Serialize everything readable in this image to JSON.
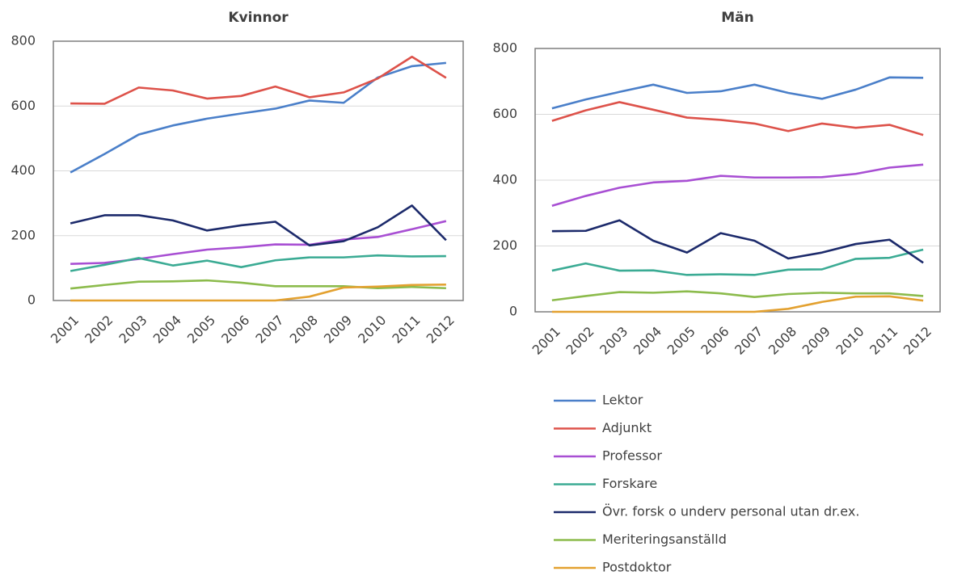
{
  "chart_data": [
    {
      "type": "line",
      "title": "Kvinnor",
      "categories": [
        "2001",
        "2002",
        "2003",
        "2004",
        "2005",
        "2006",
        "2007",
        "2008",
        "2009",
        "2010",
        "2011",
        "2012"
      ],
      "ylim": [
        0,
        800
      ],
      "yticks": [
        0,
        200,
        400,
        600,
        800
      ],
      "grid": true,
      "series": [
        {
          "color": "#4a7fc9",
          "values": [
            395,
            452,
            512,
            540,
            561,
            577,
            592,
            617,
            610,
            688,
            723,
            733
          ]
        },
        {
          "color": "#dd524a",
          "values": [
            608,
            607,
            657,
            648,
            623,
            631,
            660,
            627,
            642,
            685,
            752,
            687
          ]
        },
        {
          "color": "#a84fd3",
          "values": [
            113,
            116,
            128,
            143,
            157,
            164,
            173,
            172,
            188,
            196,
            220,
            245
          ]
        },
        {
          "color": "#3bab94",
          "values": [
            91,
            110,
            131,
            108,
            123,
            103,
            124,
            133,
            133,
            139,
            136,
            137
          ]
        },
        {
          "color": "#1c2a6b",
          "values": [
            238,
            263,
            263,
            247,
            216,
            232,
            243,
            170,
            183,
            226,
            293,
            186
          ]
        },
        {
          "color": "#8cbb4c",
          "values": [
            37,
            48,
            58,
            59,
            62,
            55,
            44,
            44,
            44,
            38,
            42,
            38
          ]
        },
        {
          "color": "#e3a130",
          "values": [
            0,
            0,
            0,
            0,
            0,
            0,
            0,
            12,
            40,
            43,
            48,
            49
          ]
        }
      ]
    },
    {
      "type": "line",
      "title": "Män",
      "categories": [
        "2001",
        "2002",
        "2003",
        "2004",
        "2005",
        "2006",
        "2007",
        "2008",
        "2009",
        "2010",
        "2011",
        "2012"
      ],
      "ylim": [
        0,
        800
      ],
      "yticks": [
        0,
        200,
        400,
        600,
        800
      ],
      "grid": true,
      "series": [
        {
          "name": "Lektor",
          "color": "#4a7fc9",
          "values": [
            618,
            645,
            668,
            690,
            665,
            670,
            690,
            665,
            647,
            675,
            712,
            711
          ]
        },
        {
          "name": "Adjunkt",
          "color": "#dd524a",
          "values": [
            580,
            612,
            637,
            614,
            590,
            583,
            572,
            549,
            572,
            559,
            568,
            537
          ]
        },
        {
          "name": "Professor",
          "color": "#a84fd3",
          "values": [
            322,
            352,
            377,
            393,
            398,
            413,
            408,
            408,
            409,
            419,
            438,
            447
          ]
        },
        {
          "name": "Forskare",
          "color": "#3bab94",
          "values": [
            125,
            147,
            125,
            126,
            112,
            114,
            112,
            128,
            129,
            161,
            164,
            189
          ]
        },
        {
          "name": "Övr. forsk o underv personal utan dr.ex.",
          "color": "#1c2a6b",
          "values": [
            245,
            246,
            278,
            216,
            180,
            239,
            216,
            162,
            180,
            206,
            219,
            149
          ]
        },
        {
          "name": "Meriteringsanställd",
          "color": "#8cbb4c",
          "values": [
            35,
            48,
            60,
            58,
            62,
            56,
            45,
            54,
            58,
            56,
            56,
            48
          ]
        },
        {
          "name": "Postdoktor",
          "color": "#e3a130",
          "values": [
            0,
            0,
            0,
            0,
            0,
            0,
            0,
            9,
            30,
            46,
            47,
            34
          ]
        }
      ]
    }
  ]
}
